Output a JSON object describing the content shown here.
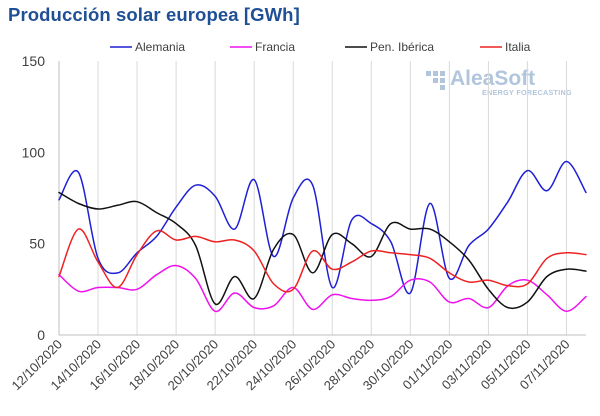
{
  "chart_data": {
    "type": "line",
    "title": "Producción solar europea [GWh]",
    "xlabel": "",
    "ylabel": "",
    "ylim": [
      0,
      150
    ],
    "yticks": [
      0,
      50,
      100,
      150
    ],
    "grid": "vertical",
    "legend_position": "top",
    "x": [
      "12/10/2020",
      "13/10/2020",
      "14/10/2020",
      "15/10/2020",
      "16/10/2020",
      "17/10/2020",
      "18/10/2020",
      "19/10/2020",
      "20/10/2020",
      "21/10/2020",
      "22/10/2020",
      "23/10/2020",
      "24/10/2020",
      "25/10/2020",
      "26/10/2020",
      "27/10/2020",
      "28/10/2020",
      "29/10/2020",
      "30/10/2020",
      "31/10/2020",
      "01/11/2020",
      "02/11/2020",
      "03/11/2020",
      "04/11/2020",
      "05/11/2020",
      "06/11/2020",
      "07/11/2020",
      "08/11/2020"
    ],
    "x_tick_labels": [
      "12/10/2020",
      "14/10/2020",
      "16/10/2020",
      "18/10/2020",
      "20/10/2020",
      "22/10/2020",
      "24/10/2020",
      "26/10/2020",
      "28/10/2020",
      "30/10/2020",
      "01/11/2020",
      "03/11/2020",
      "05/11/2020",
      "07/11/2020"
    ],
    "series": [
      {
        "name": "Alemania",
        "color": "#1f1fd6",
        "values": [
          74,
          89,
          42,
          34,
          45,
          54,
          70,
          82,
          76,
          58,
          85,
          43,
          75,
          82,
          26,
          63,
          61,
          51,
          23,
          72,
          31,
          49,
          58,
          73,
          90,
          79,
          95,
          78
        ]
      },
      {
        "name": "Francia",
        "color": "#ee11ee",
        "values": [
          33,
          24,
          26,
          26,
          25,
          33,
          38,
          31,
          13,
          23,
          15,
          16,
          26,
          14,
          22,
          20,
          19,
          21,
          30,
          29,
          18,
          20,
          15,
          27,
          30,
          22,
          13,
          21
        ]
      },
      {
        "name": "Pen. Ibérica",
        "color": "#111111",
        "values": [
          78,
          72,
          69,
          71,
          73,
          67,
          61,
          49,
          17,
          32,
          20,
          47,
          55,
          34,
          55,
          50,
          43,
          61,
          58,
          58,
          51,
          41,
          25,
          15,
          18,
          32,
          36,
          35
        ]
      },
      {
        "name": "Italia",
        "color": "#ee2222",
        "values": [
          32,
          58,
          40,
          26,
          44,
          57,
          52,
          54,
          51,
          52,
          46,
          28,
          25,
          46,
          36,
          40,
          46,
          45,
          44,
          42,
          34,
          29,
          30,
          27,
          28,
          42,
          45,
          44
        ]
      }
    ]
  },
  "logo": {
    "name": "AleaSoft",
    "tagline": "ENERGY FORECASTING"
  }
}
